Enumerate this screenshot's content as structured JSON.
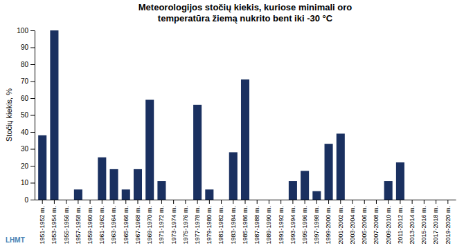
{
  "chart_data": {
    "type": "bar",
    "title": "Meteorologijos stočių kiekis, kuriose minimali oro\ntemperatūra žiemą nukrito bent iki -30 °C",
    "y_label": "Stočių kiekis, %",
    "annotations": [
      "LHMT"
    ],
    "categories": [
      "1951-1952 m.",
      "1953-1954 m.",
      "1955-1956 m.",
      "1957-1958 m.",
      "1959-1960 m.",
      "1961-1962 m.",
      "1963-1964 m.",
      "1965-1966 m.",
      "1967-1968 m.",
      "1969-1970 m.",
      "1971-1972 m.",
      "1973-1974 m.",
      "1975-1976 m.",
      "1977-1978 m.",
      "1979-1980 m.",
      "1981-1982 m.",
      "1983-1984 m.",
      "1985-1986 m.",
      "1987-1988 m.",
      "1989-1990 m.",
      "1991-1992 m.",
      "1993-1994 m.",
      "1995-1996 m.",
      "1997-1998 m.",
      "1999-2000 m.",
      "2001-2002 m.",
      "2003-2004 m.",
      "2005-2006 m.",
      "2007-2008 m.",
      "2009-2010 m.",
      "2011-2012 m.",
      "2013-2014 m.",
      "2015-2016 m.",
      "2017-2018 m.",
      "2019-2020 m."
    ],
    "values": [
      38,
      100,
      0,
      6,
      0,
      25,
      18,
      6,
      18,
      59,
      11,
      0,
      0,
      56,
      6,
      0,
      28,
      71,
      0,
      0,
      0,
      11,
      17,
      5,
      33,
      39,
      0,
      0,
      0,
      11,
      22,
      0,
      0,
      0,
      0
    ],
    "color": "#1a3060",
    "ylim": [
      0,
      100
    ],
    "yticks": [
      0,
      10,
      20,
      30,
      40,
      50,
      60,
      70,
      80,
      90,
      100
    ],
    "grid": false
  }
}
